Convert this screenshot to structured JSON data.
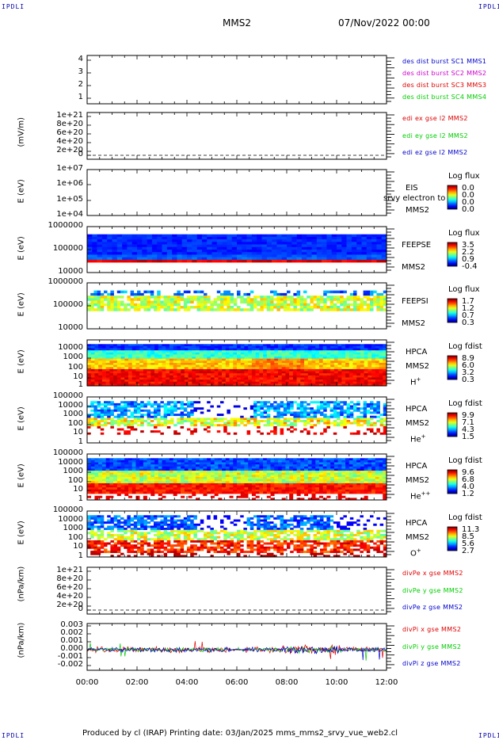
{
  "header": {
    "corner_label": "IPDLI",
    "mission": "MMS2",
    "datetime": "07/Nov/2022 00:00"
  },
  "footer": {
    "text": "Produced by cl (IRAP)   Printing date: 03/Jan/2025   mms_mms2_srvy_vue_web2.cl"
  },
  "x_ticks": [
    "00:00",
    "02:00",
    "04:00",
    "06:00",
    "08:00",
    "10:00",
    "12:00"
  ],
  "colors": {
    "blue": "#0000cc",
    "magenta": "#cc00cc",
    "red": "#dd0000",
    "green": "#00cc00",
    "frame": "#000000"
  },
  "panels": [
    {
      "id": "burst",
      "ylabel": "",
      "ticks": [
        "4",
        "3",
        "2",
        "1"
      ],
      "legend": [
        {
          "text": "des dist burst SC1 MMS1",
          "color": "#0000cc"
        },
        {
          "text": "des dist burst SC2 MMS2",
          "color": "#cc00cc"
        },
        {
          "text": "des dist burst SC3 MMS3",
          "color": "#dd0000"
        },
        {
          "text": "des dist burst SC4 MMS4",
          "color": "#00cc00"
        }
      ]
    },
    {
      "id": "edi",
      "ylabel": "(mV/m)",
      "ticks": [
        "1e+21",
        "8e+20",
        "6e+20",
        "4e+20",
        "2e+20",
        "0"
      ],
      "legend": [
        {
          "text": "edi ex gse l2 MMS2",
          "color": "#dd0000"
        },
        {
          "text": "edi ey gse l2 MMS2",
          "color": "#00cc00"
        },
        {
          "text": "edi ez gse l2 MMS2",
          "color": "#0000cc"
        }
      ]
    },
    {
      "id": "eis",
      "ylabel": "E (eV)",
      "ticks": [
        "1e+07",
        "1e+06",
        "1e+05",
        "1e+04"
      ],
      "side": [
        "EIS",
        "MMS2"
      ],
      "overlay": "srvy electron to",
      "colorbar": {
        "title": "Log flux",
        "values": [
          "0.0",
          "0.0",
          "0.0",
          "0.0"
        ]
      }
    },
    {
      "id": "feepse",
      "ylabel": "E (eV)",
      "ticks": [
        "1000000",
        "100000",
        "10000"
      ],
      "side": [
        "FEEPSE",
        "MMS2"
      ],
      "colorbar": {
        "title": "Log flux",
        "values": [
          "3.5",
          "2.2",
          "0.9",
          "-0.4"
        ]
      }
    },
    {
      "id": "feepsi",
      "ylabel": "E (eV)",
      "ticks": [
        "1000000",
        "100000",
        "10000"
      ],
      "side": [
        "FEEPSI",
        "MMS2"
      ],
      "colorbar": {
        "title": "Log flux",
        "values": [
          "1.7",
          "1.2",
          "0.7",
          "0.3"
        ]
      }
    },
    {
      "id": "hpca-h",
      "ylabel": "E (eV)",
      "ticks": [
        "10000",
        "1000",
        "100",
        "10",
        "1"
      ],
      "side": [
        "HPCA",
        "MMS2"
      ],
      "species": "H",
      "species_sup": "+",
      "colorbar": {
        "title": "Log fdist",
        "values": [
          "8.9",
          "6.0",
          "3.2",
          "0.3"
        ]
      }
    },
    {
      "id": "hpca-he",
      "ylabel": "E (eV)",
      "ticks": [
        "100000",
        "10000",
        "1000",
        "100",
        "10",
        "1"
      ],
      "side": [
        "HPCA",
        "MMS2"
      ],
      "species": "He",
      "species_sup": "+",
      "colorbar": {
        "title": "Log fdist",
        "values": [
          "9.9",
          "7.1",
          "4.3",
          "1.5"
        ]
      }
    },
    {
      "id": "hpca-hepp",
      "ylabel": "E (eV)",
      "ticks": [
        "100000",
        "10000",
        "1000",
        "100",
        "10",
        "1"
      ],
      "side": [
        "HPCA",
        "MMS2"
      ],
      "species": "He",
      "species_sup": "++",
      "colorbar": {
        "title": "Log fdist",
        "values": [
          "9.6",
          "6.8",
          "4.0",
          "1.2"
        ]
      }
    },
    {
      "id": "hpca-o",
      "ylabel": "E (eV)",
      "ticks": [
        "100000",
        "10000",
        "1000",
        "100",
        "10",
        "1"
      ],
      "side": [
        "HPCA",
        "MMS2"
      ],
      "species": "O",
      "species_sup": "+",
      "colorbar": {
        "title": "Log fdist",
        "values": [
          "11.3",
          "8.5",
          "5.6",
          "2.7"
        ]
      }
    },
    {
      "id": "divpe",
      "ylabel": "(nPa/km)",
      "ticks": [
        "1e+21",
        "8e+20",
        "6e+20",
        "4e+20",
        "2e+20",
        "0"
      ],
      "legend": [
        {
          "text": "divPe x gse MMS2",
          "color": "#dd0000"
        },
        {
          "text": "divPe y gse MMS2",
          "color": "#00cc00"
        },
        {
          "text": "divPe z gse MMS2",
          "color": "#0000cc"
        }
      ]
    },
    {
      "id": "divpi",
      "ylabel": "(nPa/km)",
      "ticks": [
        "0.003",
        "0.002",
        "0.001",
        "0.000",
        "-0.001",
        "-0.002"
      ],
      "legend": [
        {
          "text": "divPi x gse MMS2",
          "color": "#dd0000"
        },
        {
          "text": "divPi y gse MMS2",
          "color": "#00cc00"
        },
        {
          "text": "divPi z gse MMS2",
          "color": "#0000cc"
        }
      ]
    }
  ],
  "chart_data": {
    "type": "heatmap",
    "title": "MMS2",
    "time_range": [
      "00:00",
      "12:00"
    ],
    "panels": [
      {
        "name": "burst",
        "ylim": [
          0.5,
          4.5
        ]
      },
      {
        "name": "edi",
        "ylim": [
          -1e+20,
          1.1e+21
        ],
        "dashed_zero": true
      },
      {
        "name": "EIS",
        "scale": "log",
        "ylim": [
          10000.0,
          10000000.0
        ]
      },
      {
        "name": "FEEPSE",
        "scale": "log",
        "ylim": [
          10000.0,
          1000000.0
        ]
      },
      {
        "name": "FEEPSI",
        "scale": "log",
        "ylim": [
          10000.0,
          1000000.0
        ]
      },
      {
        "name": "HPCA H+",
        "scale": "log",
        "ylim": [
          1,
          20000.0
        ]
      },
      {
        "name": "HPCA He+",
        "scale": "log",
        "ylim": [
          1,
          100000.0
        ]
      },
      {
        "name": "HPCA He++",
        "scale": "log",
        "ylim": [
          1,
          100000.0
        ]
      },
      {
        "name": "HPCA O+",
        "scale": "log",
        "ylim": [
          1,
          100000.0
        ]
      },
      {
        "name": "divPe",
        "ylim": [
          -1e+20,
          1.1e+21
        ],
        "dashed_zero": true
      },
      {
        "name": "divPi",
        "ylim": [
          -0.0027,
          0.0033
        ]
      }
    ]
  }
}
